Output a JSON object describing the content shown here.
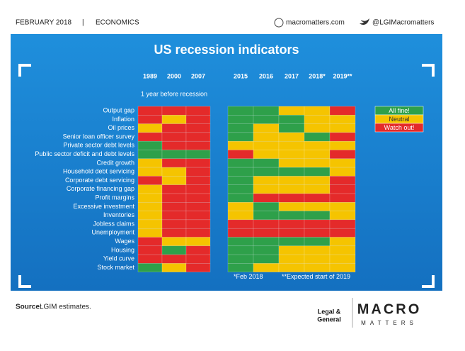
{
  "header": {
    "date": "FEBRUARY 2018",
    "separator": "|",
    "section": "ECONOMICS",
    "website": "macromatters.com",
    "twitter": "@LGIMacromatters"
  },
  "chart_data": {
    "type": "heatmap",
    "title": "US recession indicators",
    "subtitle": "1 year before recession",
    "columns": [
      "1989",
      "2000",
      "2007",
      "2015",
      "2016",
      "2017",
      "2018*",
      "2019**"
    ],
    "rows": [
      "Output gap",
      "Inflation",
      "Oil prices",
      "Senior loan officer survey",
      "Private sector debt levels",
      "Public sector deficit and debt levels",
      "Credit growth",
      "Household debt servicing",
      "Corporate debt servicing",
      "Corporate financing gap",
      "Profit margins",
      "Excessive investment",
      "Inventories",
      "Jobless claims",
      "Unemployment",
      "Wages",
      "Housing",
      "Yield curve",
      "Stock market"
    ],
    "values": [
      [
        2,
        2,
        2,
        0,
        0,
        1,
        1,
        2
      ],
      [
        2,
        1,
        2,
        0,
        0,
        0,
        1,
        1
      ],
      [
        1,
        2,
        2,
        0,
        1,
        0,
        1,
        1
      ],
      [
        2,
        2,
        2,
        0,
        1,
        1,
        0,
        2
      ],
      [
        0,
        2,
        2,
        1,
        1,
        1,
        1,
        1
      ],
      [
        0,
        0,
        0,
        2,
        1,
        1,
        1,
        2
      ],
      [
        1,
        2,
        2,
        0,
        0,
        1,
        1,
        1
      ],
      [
        1,
        1,
        2,
        0,
        0,
        0,
        0,
        1
      ],
      [
        2,
        1,
        2,
        0,
        1,
        1,
        1,
        2
      ],
      [
        1,
        2,
        2,
        0,
        1,
        1,
        1,
        2
      ],
      [
        1,
        2,
        2,
        0,
        2,
        2,
        2,
        2
      ],
      [
        1,
        2,
        2,
        1,
        0,
        1,
        1,
        1
      ],
      [
        1,
        2,
        2,
        1,
        0,
        0,
        0,
        1
      ],
      [
        1,
        2,
        2,
        2,
        2,
        2,
        2,
        2
      ],
      [
        1,
        2,
        2,
        2,
        2,
        2,
        2,
        2
      ],
      [
        2,
        1,
        1,
        0,
        0,
        0,
        0,
        1
      ],
      [
        2,
        0,
        2,
        0,
        0,
        1,
        1,
        1
      ],
      [
        2,
        2,
        2,
        0,
        0,
        1,
        1,
        1
      ],
      [
        0,
        1,
        2,
        0,
        1,
        1,
        1,
        1
      ]
    ],
    "legend": [
      {
        "name": "All fine!",
        "color": "#2ea04a"
      },
      {
        "name": "Neutral",
        "color": "#f5c400"
      },
      {
        "name": "Watch out!",
        "color": "#e42a2a"
      }
    ],
    "footnotes": [
      "*Feb 2018",
      "**Expected start of 2019"
    ]
  },
  "footer": {
    "source_label": "Source:",
    "source_text": "LGIM estimates.",
    "brand_top": "Legal &",
    "brand_bottom": "General",
    "logo_top": "MACRO",
    "logo_bottom": "MATTERS"
  }
}
